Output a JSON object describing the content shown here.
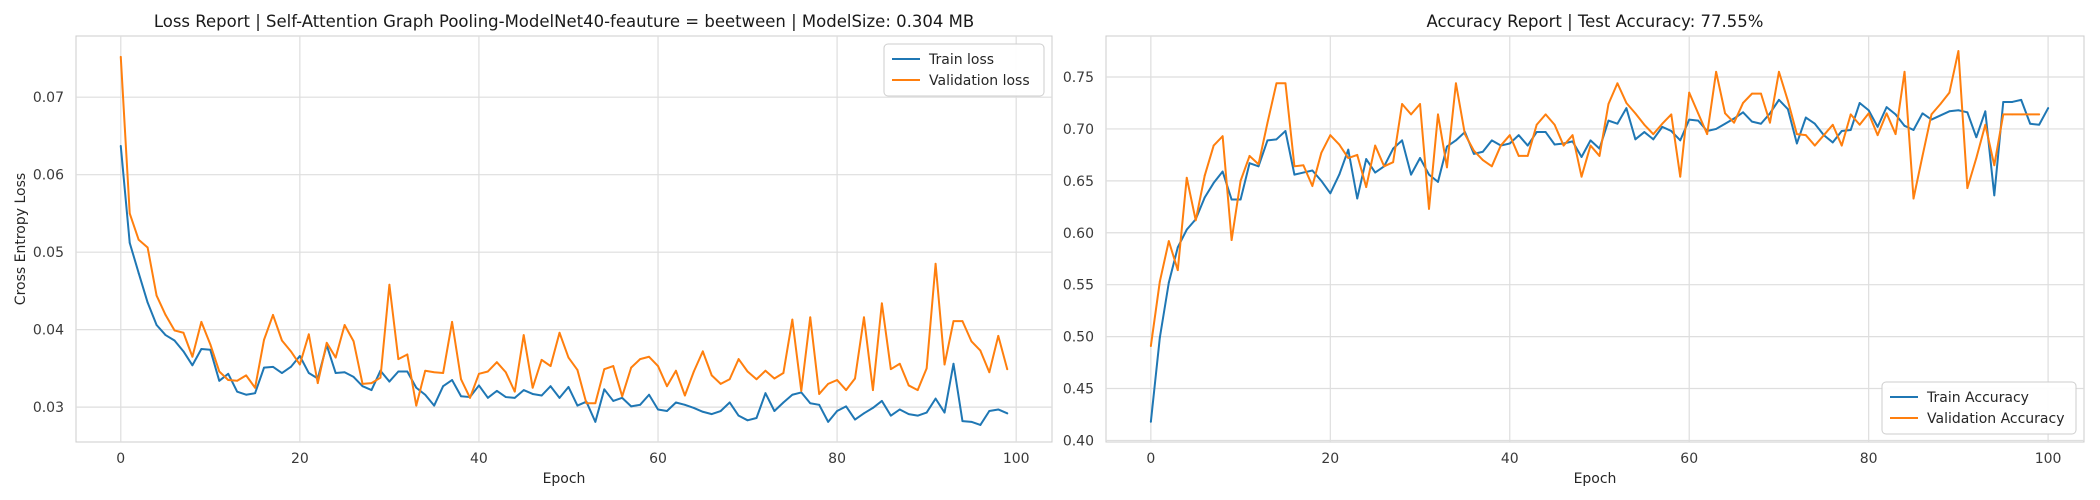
{
  "chart_data": [
    {
      "type": "line",
      "title": "Loss Report | Self-Attention Graph Pooling-ModelNet40-feauture = beetween | ModelSize: 0.304 MB",
      "xlabel": "Epoch",
      "ylabel": "Cross Entropy Loss",
      "xlim": [
        -5,
        104
      ],
      "ylim": [
        0.0255,
        0.0779
      ],
      "xticks": [
        0,
        20,
        40,
        60,
        80,
        100
      ],
      "yticks": [
        0.03,
        0.04,
        0.05,
        0.06,
        0.07
      ],
      "ytick_labels": [
        "0.03",
        "0.04",
        "0.05",
        "0.06",
        "0.07"
      ],
      "grid": true,
      "legend_position": "top-right",
      "series": [
        {
          "name": "Train loss",
          "color": "#1f77b4",
          "values": [
            0.0637,
            0.0512,
            0.0473,
            0.0435,
            0.0406,
            0.0393,
            0.0386,
            0.0372,
            0.0354,
            0.0375,
            0.0374,
            0.0334,
            0.0343,
            0.032,
            0.0316,
            0.0318,
            0.0351,
            0.0352,
            0.0344,
            0.0352,
            0.0366,
            0.0344,
            0.0337,
            0.038,
            0.0344,
            0.0345,
            0.0339,
            0.0327,
            0.0322,
            0.0347,
            0.0333,
            0.0346,
            0.0346,
            0.0325,
            0.0316,
            0.0302,
            0.0327,
            0.0335,
            0.0314,
            0.0313,
            0.0328,
            0.0312,
            0.0321,
            0.0313,
            0.0312,
            0.0322,
            0.0317,
            0.0315,
            0.0327,
            0.0312,
            0.0326,
            0.0302,
            0.0307,
            0.0281,
            0.0323,
            0.0308,
            0.0312,
            0.0301,
            0.0303,
            0.0316,
            0.0297,
            0.0295,
            0.0306,
            0.0303,
            0.0299,
            0.0294,
            0.0291,
            0.0295,
            0.0306,
            0.0289,
            0.0283,
            0.0286,
            0.0318,
            0.0295,
            0.0306,
            0.0316,
            0.0319,
            0.0305,
            0.0303,
            0.0281,
            0.0295,
            0.0301,
            0.0284,
            0.0292,
            0.0299,
            0.0308,
            0.0289,
            0.0297,
            0.0291,
            0.0289,
            0.0293,
            0.0311,
            0.0293,
            0.0356,
            0.0282,
            0.0281,
            0.0277,
            0.0295,
            0.0297,
            0.0292
          ]
        },
        {
          "name": "Validation loss",
          "color": "#ff7f0e",
          "values": [
            0.0752,
            0.055,
            0.0516,
            0.0506,
            0.0444,
            0.0419,
            0.0399,
            0.0396,
            0.0365,
            0.041,
            0.0381,
            0.0346,
            0.0335,
            0.0334,
            0.0341,
            0.0325,
            0.0387,
            0.0419,
            0.0386,
            0.0372,
            0.0355,
            0.0394,
            0.0331,
            0.0383,
            0.0364,
            0.0406,
            0.0385,
            0.033,
            0.0331,
            0.0338,
            0.0458,
            0.0362,
            0.0368,
            0.0302,
            0.0347,
            0.0345,
            0.0344,
            0.041,
            0.0336,
            0.0312,
            0.0343,
            0.0346,
            0.0358,
            0.0345,
            0.032,
            0.0393,
            0.0325,
            0.0361,
            0.0353,
            0.0396,
            0.0364,
            0.0348,
            0.0305,
            0.0305,
            0.0349,
            0.0353,
            0.0314,
            0.0351,
            0.0362,
            0.0365,
            0.0353,
            0.0327,
            0.0347,
            0.0315,
            0.0346,
            0.0372,
            0.0341,
            0.033,
            0.0336,
            0.0362,
            0.0346,
            0.0336,
            0.0347,
            0.0337,
            0.0344,
            0.0413,
            0.0321,
            0.0416,
            0.0317,
            0.033,
            0.0335,
            0.0322,
            0.0337,
            0.0416,
            0.0322,
            0.0434,
            0.0349,
            0.0356,
            0.0328,
            0.0322,
            0.035,
            0.0485,
            0.0355,
            0.0411,
            0.0411,
            0.0385,
            0.0373,
            0.0345,
            0.0392,
            0.0349
          ]
        }
      ]
    },
    {
      "type": "line",
      "title": "Accuracy Report | Test Accuracy: 77.55%",
      "xlabel": "Epoch",
      "ylabel": "",
      "xlim": [
        -5,
        104
      ],
      "ylim": [
        0.3985,
        0.7895
      ],
      "xticks": [
        0,
        20,
        40,
        60,
        80,
        100
      ],
      "yticks": [
        0.4,
        0.45,
        0.5,
        0.55,
        0.6,
        0.65,
        0.7,
        0.75
      ],
      "ytick_labels": [
        "0.40",
        "0.45",
        "0.50",
        "0.55",
        "0.60",
        "0.65",
        "0.70",
        "0.75"
      ],
      "grid": true,
      "legend_position": "bottom-right",
      "series": [
        {
          "name": "Train Accuracy",
          "color": "#1f77b4",
          "values": [
            0.418,
            0.499,
            0.552,
            0.586,
            0.603,
            0.613,
            0.634,
            0.648,
            0.659,
            0.632,
            0.632,
            0.667,
            0.664,
            0.689,
            0.69,
            0.698,
            0.656,
            0.658,
            0.66,
            0.65,
            0.638,
            0.656,
            0.68,
            0.633,
            0.671,
            0.658,
            0.664,
            0.681,
            0.689,
            0.656,
            0.672,
            0.656,
            0.649,
            0.683,
            0.689,
            0.697,
            0.676,
            0.678,
            0.689,
            0.684,
            0.686,
            0.694,
            0.684,
            0.697,
            0.697,
            0.685,
            0.686,
            0.688,
            0.673,
            0.689,
            0.681,
            0.708,
            0.705,
            0.72,
            0.69,
            0.697,
            0.69,
            0.702,
            0.698,
            0.689,
            0.709,
            0.708,
            0.698,
            0.7,
            0.705,
            0.71,
            0.716,
            0.707,
            0.705,
            0.715,
            0.728,
            0.719,
            0.686,
            0.711,
            0.705,
            0.694,
            0.687,
            0.698,
            0.699,
            0.725,
            0.718,
            0.702,
            0.721,
            0.714,
            0.703,
            0.699,
            0.715,
            0.709,
            0.713,
            0.717,
            0.718,
            0.716,
            0.692,
            0.717,
            0.636,
            0.726,
            0.726,
            0.728,
            0.705,
            0.704,
            0.72
          ]
        },
        {
          "name": "Validation Accuracy",
          "color": "#ff7f0e",
          "values": [
            0.491,
            0.553,
            0.592,
            0.564,
            0.653,
            0.612,
            0.655,
            0.684,
            0.693,
            0.593,
            0.65,
            0.674,
            0.666,
            0.706,
            0.744,
            0.744,
            0.664,
            0.665,
            0.645,
            0.677,
            0.694,
            0.685,
            0.672,
            0.675,
            0.644,
            0.684,
            0.664,
            0.668,
            0.724,
            0.714,
            0.724,
            0.623,
            0.714,
            0.663,
            0.744,
            0.695,
            0.679,
            0.67,
            0.664,
            0.684,
            0.694,
            0.674,
            0.674,
            0.704,
            0.714,
            0.704,
            0.684,
            0.694,
            0.654,
            0.684,
            0.674,
            0.724,
            0.744,
            0.725,
            0.715,
            0.704,
            0.695,
            0.705,
            0.714,
            0.654,
            0.735,
            0.715,
            0.695,
            0.755,
            0.715,
            0.706,
            0.725,
            0.734,
            0.734,
            0.706,
            0.755,
            0.727,
            0.695,
            0.694,
            0.684,
            0.694,
            0.704,
            0.684,
            0.714,
            0.704,
            0.715,
            0.694,
            0.715,
            0.695,
            0.755,
            0.633,
            0.674,
            0.714,
            0.724,
            0.735,
            0.775,
            0.643,
            0.672,
            0.704,
            0.665,
            0.714,
            0.714,
            0.714,
            0.714,
            0.714
          ]
        }
      ]
    }
  ]
}
